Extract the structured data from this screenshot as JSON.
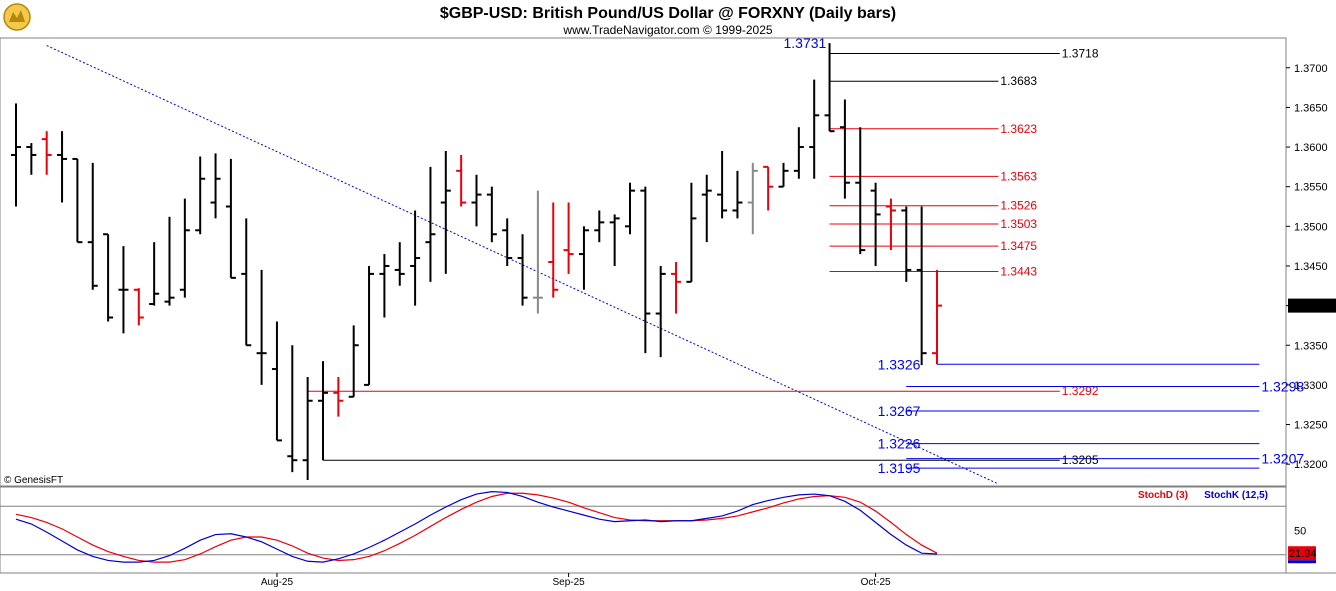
{
  "header": {
    "title": "$GBP-USD:  British Pound/US Dollar @ FORXNY  (Daily bars)",
    "subtitle": "www.TradeNavigator.com © 1999-2025",
    "logo_icon": "gold-bull-logo-icon",
    "watermark": "© GenesisFT"
  },
  "colors": {
    "up_bar": "#000000",
    "down_bar": "#e8000b",
    "support": "#0000ee",
    "resistance": "#e8000b",
    "trendline": "#0000cc"
  },
  "chart_data": [
    {
      "type": "ohlc",
      "title": "$GBP-USD:  British Pound/US Dollar @ FORXNY  (Daily bars)",
      "ylim": [
        1.3175,
        1.3735
      ],
      "yticks": [
        "1.3700",
        "1.3650",
        "1.3600",
        "1.3550",
        "1.3500",
        "1.3450",
        "1.3400",
        "1.3350",
        "1.3300",
        "1.3250",
        "1.3200"
      ],
      "last_price": "1.3400",
      "x_labels": [
        {
          "label": "Aug-25",
          "index": 17
        },
        {
          "label": "Sep-25",
          "index": 36
        },
        {
          "label": "Oct-25",
          "index": 56
        }
      ],
      "bars": [
        {
          "o": 1.359,
          "h": 1.3655,
          "l": 1.3525,
          "c": 1.36,
          "color": "black"
        },
        {
          "o": 1.36,
          "h": 1.3605,
          "l": 1.3565,
          "c": 1.359,
          "color": "black"
        },
        {
          "o": 1.361,
          "h": 1.362,
          "l": 1.3565,
          "c": 1.359,
          "color": "red"
        },
        {
          "o": 1.359,
          "h": 1.362,
          "l": 1.353,
          "c": 1.3585,
          "color": "black"
        },
        {
          "o": 1.3585,
          "h": 1.3585,
          "l": 1.348,
          "c": 1.348,
          "color": "black"
        },
        {
          "o": 1.348,
          "h": 1.358,
          "l": 1.342,
          "c": 1.3425,
          "color": "black"
        },
        {
          "o": 1.349,
          "h": 1.349,
          "l": 1.338,
          "c": 1.3385,
          "color": "black"
        },
        {
          "o": 1.342,
          "h": 1.3475,
          "l": 1.3365,
          "c": 1.342,
          "color": "black"
        },
        {
          "o": 1.342,
          "h": 1.3422,
          "l": 1.3375,
          "c": 1.3385,
          "color": "red"
        },
        {
          "o": 1.3402,
          "h": 1.348,
          "l": 1.34,
          "c": 1.3415,
          "color": "black"
        },
        {
          "o": 1.3405,
          "h": 1.3512,
          "l": 1.34,
          "c": 1.341,
          "color": "black"
        },
        {
          "o": 1.342,
          "h": 1.3535,
          "l": 1.341,
          "c": 1.3495,
          "color": "black"
        },
        {
          "o": 1.3495,
          "h": 1.3588,
          "l": 1.349,
          "c": 1.356,
          "color": "black"
        },
        {
          "o": 1.353,
          "h": 1.3592,
          "l": 1.351,
          "c": 1.356,
          "color": "black"
        },
        {
          "o": 1.3525,
          "h": 1.3585,
          "l": 1.3435,
          "c": 1.3435,
          "color": "black"
        },
        {
          "o": 1.344,
          "h": 1.351,
          "l": 1.335,
          "c": 1.335,
          "color": "black"
        },
        {
          "o": 1.334,
          "h": 1.3445,
          "l": 1.33,
          "c": 1.334,
          "color": "black"
        },
        {
          "o": 1.332,
          "h": 1.338,
          "l": 1.323,
          "c": 1.323,
          "color": "black"
        },
        {
          "o": 1.321,
          "h": 1.335,
          "l": 1.319,
          "c": 1.3205,
          "color": "black"
        },
        {
          "o": 1.3205,
          "h": 1.331,
          "l": 1.318,
          "c": 1.328,
          "color": "black"
        },
        {
          "o": 1.328,
          "h": 1.333,
          "l": 1.3205,
          "c": 1.329,
          "color": "black"
        },
        {
          "o": 1.329,
          "h": 1.331,
          "l": 1.326,
          "c": 1.328,
          "color": "red"
        },
        {
          "o": 1.3285,
          "h": 1.3375,
          "l": 1.3285,
          "c": 1.335,
          "color": "black"
        },
        {
          "o": 1.33,
          "h": 1.345,
          "l": 1.33,
          "c": 1.344,
          "color": "black"
        },
        {
          "o": 1.344,
          "h": 1.3465,
          "l": 1.3385,
          "c": 1.345,
          "color": "black"
        },
        {
          "o": 1.3445,
          "h": 1.348,
          "l": 1.3425,
          "c": 1.344,
          "color": "black"
        },
        {
          "o": 1.345,
          "h": 1.352,
          "l": 1.34,
          "c": 1.346,
          "color": "black"
        },
        {
          "o": 1.348,
          "h": 1.3575,
          "l": 1.343,
          "c": 1.349,
          "color": "black"
        },
        {
          "o": 1.353,
          "h": 1.3595,
          "l": 1.344,
          "c": 1.3545,
          "color": "black"
        },
        {
          "o": 1.357,
          "h": 1.359,
          "l": 1.3525,
          "c": 1.353,
          "color": "red"
        },
        {
          "o": 1.353,
          "h": 1.3565,
          "l": 1.35,
          "c": 1.354,
          "color": "black"
        },
        {
          "o": 1.354,
          "h": 1.355,
          "l": 1.348,
          "c": 1.349,
          "color": "black"
        },
        {
          "o": 1.3495,
          "h": 1.351,
          "l": 1.345,
          "c": 1.346,
          "color": "black"
        },
        {
          "o": 1.346,
          "h": 1.349,
          "l": 1.34,
          "c": 1.341,
          "color": "black"
        },
        {
          "o": 1.341,
          "h": 1.3545,
          "l": 1.339,
          "c": 1.341,
          "color": "gray"
        },
        {
          "o": 1.3455,
          "h": 1.353,
          "l": 1.341,
          "c": 1.342,
          "color": "red"
        },
        {
          "o": 1.347,
          "h": 1.353,
          "l": 1.344,
          "c": 1.3465,
          "color": "red"
        },
        {
          "o": 1.3465,
          "h": 1.35,
          "l": 1.342,
          "c": 1.3495,
          "color": "black"
        },
        {
          "o": 1.3495,
          "h": 1.352,
          "l": 1.348,
          "c": 1.3505,
          "color": "black"
        },
        {
          "o": 1.3505,
          "h": 1.3515,
          "l": 1.345,
          "c": 1.351,
          "color": "black"
        },
        {
          "o": 1.35,
          "h": 1.3555,
          "l": 1.349,
          "c": 1.3545,
          "color": "black"
        },
        {
          "o": 1.3545,
          "h": 1.355,
          "l": 1.334,
          "c": 1.339,
          "color": "black"
        },
        {
          "o": 1.339,
          "h": 1.345,
          "l": 1.3335,
          "c": 1.344,
          "color": "black"
        },
        {
          "o": 1.344,
          "h": 1.3455,
          "l": 1.339,
          "c": 1.343,
          "color": "red"
        },
        {
          "o": 1.343,
          "h": 1.3555,
          "l": 1.343,
          "c": 1.351,
          "color": "black"
        },
        {
          "o": 1.354,
          "h": 1.3565,
          "l": 1.348,
          "c": 1.3545,
          "color": "black"
        },
        {
          "o": 1.354,
          "h": 1.3595,
          "l": 1.351,
          "c": 1.352,
          "color": "black"
        },
        {
          "o": 1.352,
          "h": 1.357,
          "l": 1.351,
          "c": 1.353,
          "color": "black"
        },
        {
          "o": 1.353,
          "h": 1.358,
          "l": 1.349,
          "c": 1.357,
          "color": "gray"
        },
        {
          "o": 1.3575,
          "h": 1.3575,
          "l": 1.352,
          "c": 1.355,
          "color": "red"
        },
        {
          "o": 1.355,
          "h": 1.358,
          "l": 1.355,
          "c": 1.357,
          "color": "black"
        },
        {
          "o": 1.357,
          "h": 1.3625,
          "l": 1.356,
          "c": 1.36,
          "color": "black"
        },
        {
          "o": 1.36,
          "h": 1.3685,
          "l": 1.356,
          "c": 1.364,
          "color": "black"
        },
        {
          "o": 1.364,
          "h": 1.3731,
          "l": 1.362,
          "c": 1.362,
          "color": "black"
        },
        {
          "o": 1.3625,
          "h": 1.366,
          "l": 1.3535,
          "c": 1.3555,
          "color": "black"
        },
        {
          "o": 1.3555,
          "h": 1.3625,
          "l": 1.3465,
          "c": 1.347,
          "color": "black"
        },
        {
          "o": 1.3545,
          "h": 1.3555,
          "l": 1.345,
          "c": 1.3515,
          "color": "black"
        },
        {
          "o": 1.3525,
          "h": 1.3535,
          "l": 1.347,
          "c": 1.352,
          "color": "red"
        },
        {
          "o": 1.352,
          "h": 1.3525,
          "l": 1.343,
          "c": 1.3445,
          "color": "black"
        },
        {
          "o": 1.3445,
          "h": 1.3525,
          "l": 1.3325,
          "c": 1.334,
          "color": "black"
        },
        {
          "o": 1.334,
          "h": 1.3445,
          "l": 1.3326,
          "c": 1.34,
          "color": "red"
        }
      ],
      "levels": [
        {
          "value": 1.3718,
          "label": "1.3718",
          "color": "black",
          "start": 53,
          "end": 68,
          "text_at": 68
        },
        {
          "value": 1.3683,
          "label": "1.3683",
          "color": "black",
          "start": 53,
          "end": 64,
          "text_at": 64
        },
        {
          "value": 1.3623,
          "label": "1.3623",
          "color": "red",
          "start": 53,
          "end": 64,
          "text_at": 64
        },
        {
          "value": 1.3563,
          "label": "1.3563",
          "color": "red",
          "start": 53,
          "end": 64,
          "text_at": 64
        },
        {
          "value": 1.3526,
          "label": "1.3526",
          "color": "red",
          "start": 53,
          "end": 64,
          "text_at": 64
        },
        {
          "value": 1.3503,
          "label": "1.3503",
          "color": "red",
          "start": 53,
          "end": 64,
          "text_at": 64
        },
        {
          "value": 1.3475,
          "label": "1.3475",
          "color": "red",
          "start": 53,
          "end": 64,
          "text_at": 64
        },
        {
          "value": 1.3443,
          "label": "1.3443",
          "color": "red",
          "start": 53,
          "end": 64,
          "text_at": 64
        },
        {
          "value": 1.3326,
          "label": "1.3326",
          "color": "blue",
          "start": 60,
          "end": 81,
          "text_at": 56
        },
        {
          "value": 1.3298,
          "label": "1.3298",
          "color": "blue",
          "start": 58,
          "end": 81,
          "text_at": 81
        },
        {
          "value": 1.3292,
          "label": "1.3292",
          "color": "red",
          "start": 19,
          "end": 68,
          "text_at": 68
        },
        {
          "value": 1.3267,
          "label": "1.3267",
          "color": "blue",
          "start": 58,
          "end": 81,
          "text_at": 56
        },
        {
          "value": 1.3226,
          "label": "1.3226",
          "color": "blue",
          "start": 58,
          "end": 81,
          "text_at": 56
        },
        {
          "value": 1.3207,
          "label": "1.3207",
          "color": "blue",
          "start": 58,
          "end": 81,
          "text_at": 81
        },
        {
          "value": 1.3205,
          "label": "1.3205",
          "color": "black",
          "start": 20,
          "end": 68,
          "text_at": 68
        },
        {
          "value": 1.3195,
          "label": "1.3195",
          "color": "blue",
          "start": 58,
          "end": 81,
          "text_at": 56
        }
      ],
      "annotations": [
        {
          "label": "1.3731",
          "value": 1.3731,
          "index": 50,
          "color": "blue"
        }
      ],
      "trendline": {
        "start": {
          "index": 2,
          "value": 1.3728
        },
        "end": {
          "index": 64,
          "value": 1.3175
        }
      }
    },
    {
      "type": "line",
      "title": "",
      "ylim": [
        0,
        100
      ],
      "yticks": [
        "50"
      ],
      "reference_lines": [
        80,
        20
      ],
      "last_value": "21.94",
      "legend_position": "top-right",
      "series": [
        {
          "name": "StochD (3)",
          "color": "#e8000b",
          "values": [
            70,
            66,
            60,
            52,
            42,
            32,
            24,
            18,
            13,
            11,
            11,
            14,
            21,
            30,
            38,
            42,
            42,
            38,
            31,
            22,
            16,
            13,
            14,
            18,
            25,
            34,
            44,
            55,
            66,
            76,
            85,
            92,
            96,
            96,
            94,
            90,
            85,
            78,
            72,
            66,
            63,
            62,
            62,
            62,
            62,
            63,
            65,
            68,
            73,
            78,
            84,
            89,
            92,
            93,
            91,
            85,
            74,
            60,
            45,
            32,
            22
          ]
        },
        {
          "name": "StochK (12,5)",
          "color": "#0000cc",
          "values": [
            64,
            58,
            48,
            37,
            26,
            18,
            13,
            11,
            11,
            13,
            19,
            28,
            38,
            45,
            46,
            42,
            36,
            27,
            18,
            12,
            11,
            15,
            21,
            29,
            38,
            48,
            58,
            69,
            79,
            88,
            95,
            98,
            97,
            92,
            85,
            79,
            74,
            69,
            64,
            61,
            62,
            63,
            61,
            62,
            62,
            65,
            68,
            74,
            82,
            87,
            91,
            94,
            95,
            93,
            86,
            75,
            60,
            45,
            32,
            22,
            21
          ]
        }
      ]
    }
  ]
}
